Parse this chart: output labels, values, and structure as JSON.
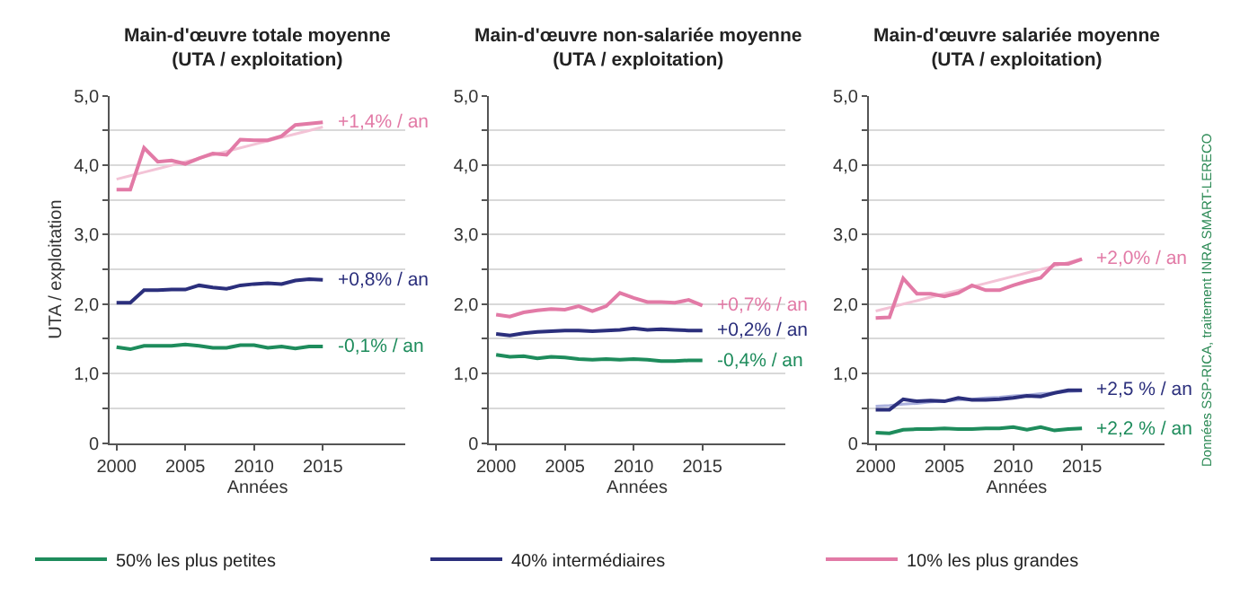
{
  "chart_data": [
    {
      "type": "line",
      "title": "Main-d'œuvre totale moyenne\n(UTA / exploitation)",
      "xlabel": "Années",
      "ylabel": "UTA / exploitation",
      "x": [
        2000,
        2001,
        2002,
        2003,
        2004,
        2005,
        2006,
        2007,
        2008,
        2009,
        2010,
        2011,
        2012,
        2013,
        2014,
        2015
      ],
      "series": [
        {
          "name": "50% les plus petites",
          "color": "#1e8c5c",
          "values": [
            1.38,
            1.35,
            1.4,
            1.4,
            1.4,
            1.42,
            1.4,
            1.37,
            1.37,
            1.41,
            1.41,
            1.37,
            1.39,
            1.36,
            1.39,
            1.39
          ]
        },
        {
          "name": "40% intermédiaires",
          "color": "#2b2f7c",
          "values": [
            2.02,
            2.02,
            2.2,
            2.2,
            2.21,
            2.21,
            2.27,
            2.24,
            2.22,
            2.27,
            2.29,
            2.3,
            2.29,
            2.34,
            2.36,
            2.35
          ]
        },
        {
          "name": "10% les plus grandes",
          "color": "#e27aa6",
          "values": [
            3.65,
            3.65,
            4.25,
            4.05,
            4.07,
            4.02,
            4.1,
            4.17,
            4.15,
            4.37,
            4.36,
            4.36,
            4.42,
            4.58,
            4.6,
            4.62
          ]
        },
        {
          "type": "line",
          "color": "#f3c3d6",
          "values": [
            3.8,
            3.85,
            3.9,
            3.95,
            4.0,
            4.05,
            4.1,
            4.15,
            4.2,
            4.25,
            4.3,
            4.35,
            4.4,
            4.45,
            4.5,
            4.55
          ]
        }
      ],
      "annotations": [
        "-0,1% / an",
        "+0,8% / an",
        "+1,4% / an"
      ],
      "xlim": [
        1999.5,
        2021
      ],
      "xticks": [
        2000,
        2005,
        2010,
        2015
      ],
      "ylim": [
        0,
        5
      ],
      "yticks": [
        0,
        {
          "value": 0.5,
          "label": null
        },
        {
          "value": 1,
          "label": "1,0"
        },
        {
          "value": 1.5,
          "label": null
        },
        {
          "value": 2,
          "label": "2,0"
        },
        {
          "value": 2.5,
          "label": null
        },
        {
          "value": 3,
          "label": "3,0"
        },
        {
          "value": 3.5,
          "label": null
        },
        {
          "value": 4,
          "label": "4,0"
        },
        {
          "value": 4.5,
          "label": null
        },
        {
          "value": 5,
          "label": "5,0"
        }
      ],
      "grid": "y",
      "legend": "bottom",
      "marker": "none",
      "line_style": "solid"
    },
    {
      "type": "line",
      "title": "Main-d'œuvre non-salariée moyenne\n(UTA / exploitation)",
      "xlabel": "Années",
      "x": [
        2000,
        2001,
        2002,
        2003,
        2004,
        2005,
        2006,
        2007,
        2008,
        2009,
        2010,
        2011,
        2012,
        2013,
        2014,
        2015
      ],
      "series": [
        {
          "name": "50% les plus petites",
          "color": "#1e8c5c",
          "values": [
            1.27,
            1.24,
            1.25,
            1.22,
            1.24,
            1.23,
            1.21,
            1.2,
            1.21,
            1.2,
            1.21,
            1.2,
            1.18,
            1.18,
            1.19,
            1.19
          ]
        },
        {
          "name": "40% intermédiaires",
          "color": "#2b2f7c",
          "values": [
            1.57,
            1.55,
            1.58,
            1.6,
            1.61,
            1.62,
            1.62,
            1.61,
            1.62,
            1.63,
            1.65,
            1.63,
            1.64,
            1.63,
            1.62,
            1.62
          ]
        },
        {
          "name": "10% les plus grandes",
          "color": "#e27aa6",
          "values": [
            1.85,
            1.82,
            1.88,
            1.91,
            1.93,
            1.92,
            1.97,
            1.9,
            1.97,
            2.16,
            2.09,
            2.03,
            2.03,
            2.02,
            2.06,
            1.98
          ]
        }
      ],
      "annotations": [
        "-0,4% / an",
        "+0,2% / an",
        "+0,7% / an"
      ],
      "xlim": [
        1999.5,
        2021
      ],
      "xticks": [
        2000,
        2005,
        2010,
        2015
      ],
      "ylim": [
        0,
        5
      ],
      "yticks": [
        0,
        {
          "value": 0.5,
          "label": null
        },
        {
          "value": 1,
          "label": "1,0"
        },
        {
          "value": 1.5,
          "label": null
        },
        {
          "value": 2,
          "label": "2,0"
        },
        {
          "value": 2.5,
          "label": null
        },
        {
          "value": 3,
          "label": "3,0"
        },
        {
          "value": 3.5,
          "label": null
        },
        {
          "value": 4,
          "label": "4,0"
        },
        {
          "value": 4.5,
          "label": null
        },
        {
          "value": 5,
          "label": "5,0"
        }
      ],
      "grid": "y",
      "legend": "bottom",
      "marker": "none",
      "line_style": "solid"
    },
    {
      "type": "line",
      "title": "Main-d'œuvre salariée moyenne\n(UTA / exploitation)",
      "xlabel": "Années",
      "x": [
        2000,
        2001,
        2002,
        2003,
        2004,
        2005,
        2006,
        2007,
        2008,
        2009,
        2010,
        2011,
        2012,
        2013,
        2014,
        2015
      ],
      "series": [
        {
          "name": "50% les plus petites",
          "color": "#1e8c5c",
          "values": [
            0.15,
            0.14,
            0.19,
            0.2,
            0.2,
            0.21,
            0.2,
            0.2,
            0.21,
            0.21,
            0.23,
            0.19,
            0.23,
            0.18,
            0.2,
            0.21
          ]
        },
        {
          "name": "40% intermédiaires",
          "color": "#2b2f7c",
          "values": [
            0.48,
            0.48,
            0.63,
            0.6,
            0.61,
            0.6,
            0.65,
            0.62,
            0.62,
            0.63,
            0.65,
            0.68,
            0.67,
            0.72,
            0.76,
            0.76
          ]
        },
        {
          "name": "10% les plus grandes",
          "color": "#e27aa6",
          "values": [
            1.8,
            1.81,
            2.37,
            2.15,
            2.15,
            2.11,
            2.16,
            2.27,
            2.2,
            2.2,
            2.27,
            2.33,
            2.38,
            2.58,
            2.58,
            2.65
          ]
        },
        {
          "type": "line",
          "color": "#f3c3d6",
          "values": [
            1.9,
            1.95,
            2.0,
            2.05,
            2.1,
            2.15,
            2.2,
            2.25,
            2.3,
            2.35,
            2.4,
            2.45,
            2.5,
            2.55,
            2.6,
            2.65
          ]
        },
        {
          "type": "line",
          "color": "#aab0dd",
          "values": [
            0.53,
            0.54,
            0.56,
            0.57,
            0.59,
            0.6,
            0.62,
            0.63,
            0.65,
            0.66,
            0.68,
            0.69,
            0.71,
            0.72,
            0.74,
            0.75
          ]
        }
      ],
      "annotations": [
        "+2,2 % / an",
        "+2,5 % / an",
        "+2,0% / an",
        "Données SSP-RICA, traitement INRA SMART-LERECO"
      ],
      "xlim": [
        1999.5,
        2021
      ],
      "xticks": [
        2000,
        2005,
        2010,
        2015
      ],
      "ylim": [
        0,
        5
      ],
      "yticks": [
        0,
        {
          "value": 0.5,
          "label": null
        },
        {
          "value": 1,
          "label": "1,0"
        },
        {
          "value": 1.5,
          "label": null
        },
        {
          "value": 2,
          "label": "2,0"
        },
        {
          "value": 2.5,
          "label": null
        },
        {
          "value": 3,
          "label": "3,0"
        },
        {
          "value": 3.5,
          "label": null
        },
        {
          "value": 4,
          "label": "4,0"
        },
        {
          "value": 4.5,
          "label": null
        },
        {
          "value": 5,
          "label": "5,0"
        }
      ],
      "grid": "y",
      "legend": "bottom",
      "marker": "none",
      "line_style": "solid"
    }
  ]
}
